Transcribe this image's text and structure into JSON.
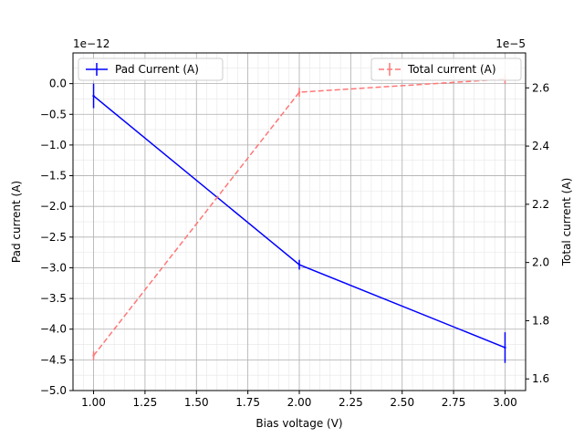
{
  "chart_data": {
    "type": "line",
    "xlabel": "Bias voltage (V)",
    "ylabel_left": "Pad current (A)",
    "ylabel_right": "Total current (A)",
    "left_offset_label": "1e−12",
    "right_offset_label": "1e−5",
    "xlim": [
      0.9,
      3.1
    ],
    "x_ticks": [
      "1.00",
      "1.25",
      "1.50",
      "1.75",
      "2.00",
      "2.25",
      "2.50",
      "2.75",
      "3.00"
    ],
    "ylim_left": [
      -5.0,
      0.5
    ],
    "left_ticks": [
      -5.0,
      -4.5,
      -4.0,
      -3.5,
      -3.0,
      -2.5,
      -2.0,
      -1.5,
      -1.0,
      -0.5,
      0.0
    ],
    "ylim_right": [
      1.56e-05,
      2.72e-05
    ],
    "right_ticks": [
      "1.6",
      "1.8",
      "2.0",
      "2.2",
      "2.4",
      "2.6"
    ],
    "grid": true,
    "series": [
      {
        "name": "Pad Current (A)",
        "axis": "left",
        "color": "#0000ff",
        "style": "solid",
        "x": [
          1.0,
          2.0,
          3.0
        ],
        "y": [
          -0.2,
          -2.95,
          -4.3
        ],
        "yerr": [
          0.2,
          0.08,
          0.25
        ]
      },
      {
        "name": "Total current (A)",
        "axis": "right",
        "color": "#ff7777",
        "style": "dashed",
        "x": [
          1.0,
          2.0,
          3.0
        ],
        "y": [
          1.68e-05,
          2.585e-05,
          2.63e-05
        ],
        "yerr": [
          1.5e-07,
          1e-07,
          1e-07
        ]
      }
    ],
    "legend_left": {
      "label": "Pad Current (A)",
      "placement": "top-left"
    },
    "legend_right": {
      "label": "Total current (A)",
      "placement": "top-right"
    }
  }
}
